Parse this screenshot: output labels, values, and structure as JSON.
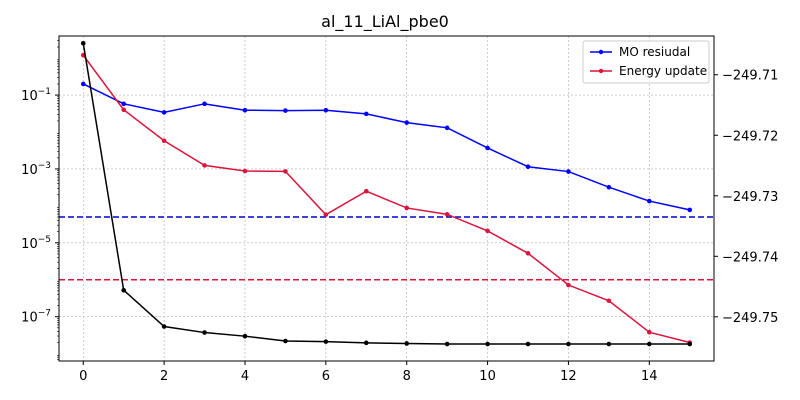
{
  "chart_data": {
    "type": "line",
    "title": "al_11_LiAl_pbe0",
    "grid": true,
    "legend_position": "top-right",
    "x": [
      0,
      1,
      2,
      3,
      4,
      5,
      6,
      7,
      8,
      9,
      10,
      11,
      12,
      13,
      14,
      15
    ],
    "xlim": [
      -0.6,
      15.6
    ],
    "x_ticks": [
      0,
      2,
      4,
      6,
      8,
      10,
      12,
      14
    ],
    "left_axis": {
      "scale": "log",
      "ylim_exponent": [
        -8.2,
        0.6
      ],
      "tick_labels": [
        "10^-7",
        "10^-5",
        "10^-3",
        "10^-1"
      ],
      "tick_exponents": [
        -7,
        -5,
        -3,
        -1
      ]
    },
    "right_axis": {
      "scale": "linear",
      "ylim": [
        -249.7573,
        -249.7036
      ],
      "ticks": [
        -249.71,
        -249.72,
        -249.73,
        -249.74,
        -249.75
      ],
      "tick_labels": [
        "−249.71",
        "−249.72",
        "−249.73",
        "−249.74",
        "−249.75"
      ]
    },
    "series": [
      {
        "name": "MO resiudal",
        "axis": "left",
        "color": "#0000ff",
        "values": [
          0.2,
          0.058,
          0.034,
          0.058,
          0.039,
          0.038,
          0.039,
          0.031,
          0.018,
          0.013,
          0.0037,
          0.00115,
          0.00085,
          0.00032,
          0.000135,
          7.8e-05
        ]
      },
      {
        "name": "Energy update",
        "axis": "left",
        "color": "#dc143c",
        "values": [
          1.2,
          0.04,
          0.0058,
          0.00125,
          0.00088,
          0.00086,
          5.8e-05,
          0.00025,
          8.8e-05,
          5.9e-05,
          2.1e-05,
          5.2e-06,
          7.2e-07,
          2.7e-07,
          3.8e-08,
          2e-08
        ]
      },
      {
        "name": "",
        "axis": "right",
        "color": "#000000",
        "values": [
          -249.7048,
          -249.7456,
          -249.7516,
          -249.7526,
          -249.7532,
          -249.754,
          -249.7541,
          -249.7543,
          -249.7544,
          -249.7545,
          -249.7545,
          -249.7545,
          -249.7545,
          -249.7545,
          -249.7545,
          -249.7545
        ]
      }
    ],
    "hlines": [
      {
        "axis": "left",
        "value": 5e-05,
        "color": "#0000cd",
        "style": "dashed"
      },
      {
        "axis": "left",
        "value": 1e-06,
        "color": "#dc143c",
        "style": "dashed"
      }
    ]
  }
}
